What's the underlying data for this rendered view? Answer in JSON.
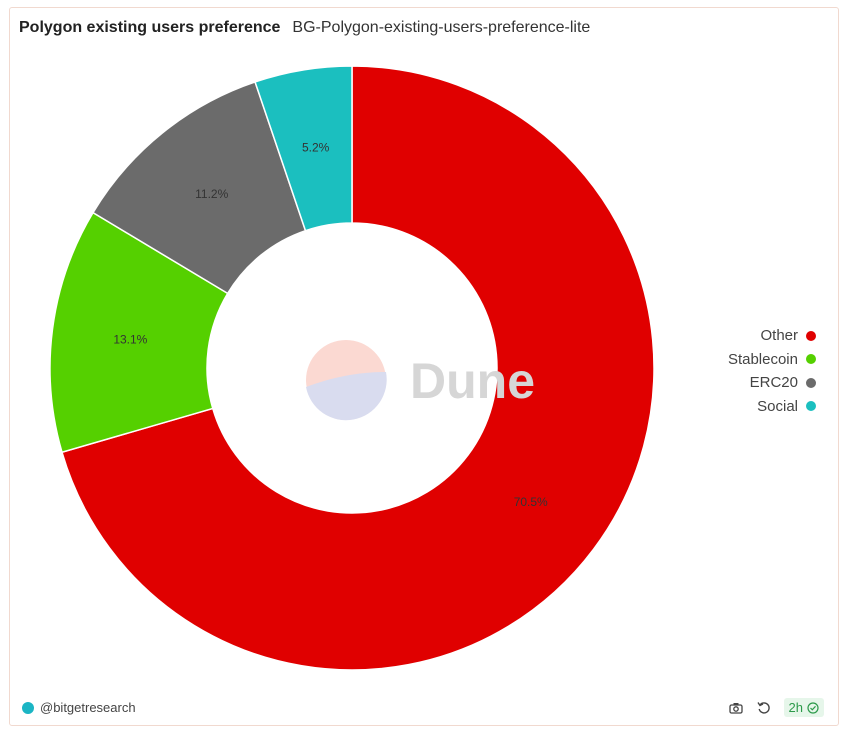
{
  "header": {
    "title": "Polygon existing users preference",
    "subtitle": "BG-Polygon-existing-users-preference-lite"
  },
  "watermark": {
    "text": "Dune"
  },
  "chart_data": {
    "type": "pie",
    "donut": true,
    "slices": [
      {
        "name": "Other",
        "value": 70.5,
        "label": "70.5%",
        "color": "#e00000"
      },
      {
        "name": "Stablecoin",
        "value": 13.1,
        "label": "13.1%",
        "color": "#55d000"
      },
      {
        "name": "ERC20",
        "value": 11.2,
        "label": "11.2%",
        "color": "#6b6b6b"
      },
      {
        "name": "Social",
        "value": 5.2,
        "label": "5.2%",
        "color": "#1bbfbf"
      }
    ],
    "legend_placement": "right"
  },
  "footer": {
    "author": "@bitgetresearch",
    "refresh_badge": "2h",
    "icons": [
      "camera-icon",
      "refresh-icon",
      "check-circle-icon"
    ]
  }
}
